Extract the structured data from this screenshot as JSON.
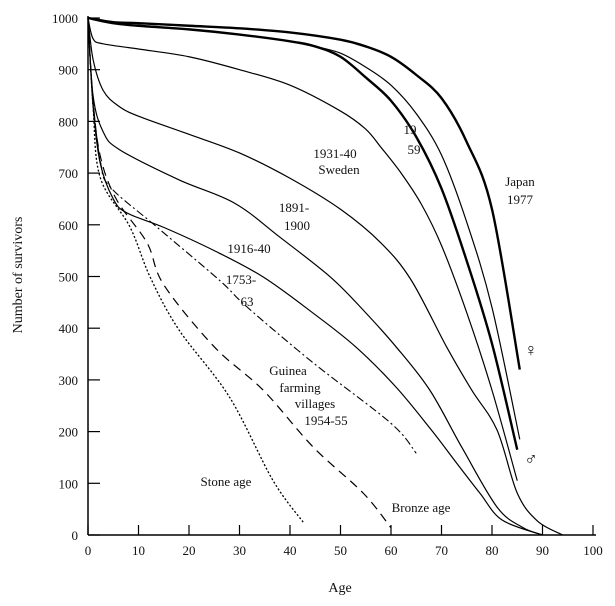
{
  "chart_data": {
    "type": "line",
    "title": "",
    "xlabel": "Age",
    "ylabel": "Number of survivors",
    "xlim": [
      0,
      100
    ],
    "ylim": [
      0,
      1000
    ],
    "grid": false,
    "xticks": [
      "0",
      "10",
      "20",
      "30",
      "40",
      "50",
      "60",
      "70",
      "80",
      "90",
      "100"
    ],
    "yticks": [
      "0",
      "100",
      "200",
      "300",
      "400",
      "500",
      "600",
      "700",
      "800",
      "900",
      "1000"
    ],
    "series": [
      {
        "name": "Japan 1977 female",
        "style": "thick",
        "points": [
          [
            0,
            1000
          ],
          [
            5,
            992
          ],
          [
            10,
            990
          ],
          [
            20,
            985
          ],
          [
            30,
            980
          ],
          [
            40,
            972
          ],
          [
            50,
            958
          ],
          [
            55,
            945
          ],
          [
            60,
            925
          ],
          [
            65,
            890
          ],
          [
            70,
            845
          ],
          [
            75,
            760
          ],
          [
            80,
            630
          ],
          [
            85.5,
            320
          ]
        ]
      },
      {
        "name": "Japan 1977 male",
        "style": "thick",
        "points": [
          [
            0,
            1000
          ],
          [
            5,
            990
          ],
          [
            10,
            985
          ],
          [
            20,
            978
          ],
          [
            30,
            968
          ],
          [
            40,
            955
          ],
          [
            45,
            945
          ],
          [
            50,
            925
          ],
          [
            55,
            885
          ],
          [
            60,
            840
          ],
          [
            65,
            770
          ],
          [
            70,
            670
          ],
          [
            75,
            530
          ],
          [
            80,
            370
          ],
          [
            85,
            165
          ]
        ]
      },
      {
        "name": "Japan 1959",
        "style": "thin",
        "points": [
          [
            45,
            945
          ],
          [
            50,
            932
          ],
          [
            55,
            905
          ],
          [
            60,
            870
          ],
          [
            65,
            815
          ],
          [
            70,
            735
          ],
          [
            75,
            605
          ],
          [
            80,
            440
          ],
          [
            85.5,
            185
          ]
        ]
      },
      {
        "name": "Sweden 1931-40",
        "style": "thin",
        "points": [
          [
            0,
            1000
          ],
          [
            1,
            960
          ],
          [
            3,
            950
          ],
          [
            10,
            940
          ],
          [
            20,
            925
          ],
          [
            30,
            900
          ],
          [
            40,
            870
          ],
          [
            50,
            820
          ],
          [
            55,
            785
          ],
          [
            58,
            750
          ],
          [
            62,
            700
          ],
          [
            66,
            640
          ],
          [
            70,
            560
          ],
          [
            75,
            430
          ],
          [
            80,
            280
          ],
          [
            85,
            105
          ]
        ]
      },
      {
        "name": "1891-1900",
        "style": "thin",
        "points": [
          [
            0,
            1000
          ],
          [
            1,
            920
          ],
          [
            3,
            860
          ],
          [
            6,
            830
          ],
          [
            10,
            810
          ],
          [
            20,
            775
          ],
          [
            30,
            739
          ],
          [
            40,
            690
          ],
          [
            50,
            630
          ],
          [
            58,
            565
          ],
          [
            64,
            493
          ],
          [
            71,
            364
          ],
          [
            76,
            280
          ],
          [
            81,
            203
          ],
          [
            85,
            81
          ],
          [
            89,
            27
          ],
          [
            94,
            0
          ]
        ]
      },
      {
        "name": "1916-40",
        "style": "thin",
        "points": [
          [
            0,
            1000
          ],
          [
            1,
            850
          ],
          [
            3,
            780
          ],
          [
            6.3,
            745
          ],
          [
            18,
            687
          ],
          [
            29,
            642
          ],
          [
            38,
            576
          ],
          [
            48,
            499
          ],
          [
            54.5,
            435
          ],
          [
            61,
            364
          ],
          [
            67.7,
            280
          ],
          [
            74,
            170
          ],
          [
            81,
            54
          ],
          [
            86,
            15
          ],
          [
            90,
            0
          ]
        ]
      },
      {
        "name": "1753-63",
        "style": "thin",
        "points": [
          [
            0,
            1000
          ],
          [
            1,
            830
          ],
          [
            2.4,
            720
          ],
          [
            5,
            650
          ],
          [
            7.7,
            623
          ],
          [
            15,
            595
          ],
          [
            25,
            550
          ],
          [
            34.7,
            499
          ],
          [
            44.6,
            429
          ],
          [
            53,
            364
          ],
          [
            61,
            286
          ],
          [
            68,
            203
          ],
          [
            73,
            139
          ],
          [
            77.6,
            81
          ],
          [
            82,
            29
          ],
          [
            90,
            0
          ]
        ]
      },
      {
        "name": "Guinea farming villages 1954-55",
        "style": "dashdot",
        "points": [
          [
            0,
            1000
          ],
          [
            1,
            840
          ],
          [
            2.5,
            720
          ],
          [
            4.4,
            673
          ],
          [
            13.6,
            596
          ],
          [
            26,
            493
          ],
          [
            31.5,
            441
          ],
          [
            44.6,
            333
          ],
          [
            60,
            216
          ],
          [
            65,
            158
          ]
        ]
      },
      {
        "name": "Bronze age",
        "style": "dashed",
        "points": [
          [
            0,
            1000
          ],
          [
            1,
            840
          ],
          [
            2.5,
            730
          ],
          [
            5.7,
            648
          ],
          [
            11.7,
            565
          ],
          [
            15,
            484
          ],
          [
            25,
            364
          ],
          [
            34.7,
            280
          ],
          [
            44.6,
            170
          ],
          [
            54.5,
            81
          ],
          [
            60,
            14
          ]
        ]
      },
      {
        "name": "Stone age",
        "style": "dotted",
        "points": [
          [
            0,
            1000
          ],
          [
            1,
            830
          ],
          [
            2.4,
            692
          ],
          [
            8.3,
            596
          ],
          [
            12.3,
            499
          ],
          [
            18,
            397
          ],
          [
            28,
            267
          ],
          [
            36.6,
            106
          ],
          [
            42.6,
            25
          ]
        ]
      }
    ],
    "annotations": {
      "japan": "Japan",
      "japan_year": "1977",
      "y1959_a": "19",
      "y1959_b": "59",
      "sweden_years": "1931-40",
      "sweden": "Sweden",
      "y1891_a": "1891-",
      "y1891_b": "1900",
      "y1916": "1916-40",
      "y1753_a": "1753-",
      "y1753_b": "63",
      "guinea_1": "Guinea",
      "guinea_2": "farming",
      "guinea_3": "villages",
      "guinea_4": "1954-55",
      "stone": "Stone age",
      "bronze": "Bronze age",
      "female": "♀",
      "male": "♂"
    }
  }
}
